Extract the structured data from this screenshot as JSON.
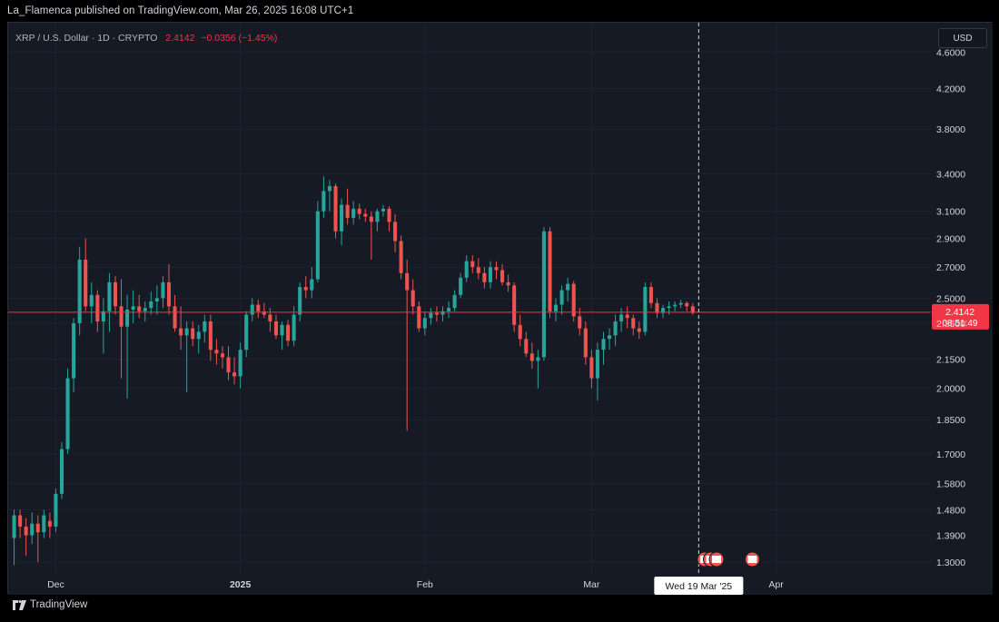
{
  "header": {
    "published_line": "La_Flamenca published on TradingView.com, Mar 26, 2025 16:08 UTC+1"
  },
  "legend": {
    "symbol": "XRP / U.S. Dollar · 1D · CRYPTO",
    "price": "2.4142",
    "change": "−0.0356 (−1.45%)"
  },
  "currency": "USD",
  "price_badge": {
    "price": "2.4142",
    "countdown": "08:51:49"
  },
  "crosshair_label": "Wed 19 Mar '25",
  "footer": {
    "brand": "TradingView"
  },
  "colors": {
    "up": "#26a69a",
    "down": "#ef5350",
    "background": "#161a25",
    "grid": "#1f2330",
    "price_line": "#f23645"
  },
  "chart_data": {
    "type": "candlestick",
    "title": "XRP / U.S. Dollar · 1D · CRYPTO",
    "y_scale": "log",
    "ylim": [
      1.26,
      4.75
    ],
    "y_ticks": [
      {
        "value": 4.6,
        "label": "4.6000"
      },
      {
        "value": 4.2,
        "label": "4.2000"
      },
      {
        "value": 3.8,
        "label": "3.8000"
      },
      {
        "value": 3.4,
        "label": "3.4000"
      },
      {
        "value": 3.1,
        "label": "3.1000"
      },
      {
        "value": 2.9,
        "label": "2.9000"
      },
      {
        "value": 2.7,
        "label": "2.7000"
      },
      {
        "value": 2.5,
        "label": "2.5000"
      },
      {
        "value": 2.35,
        "label": "2.3500"
      },
      {
        "value": 2.15,
        "label": "2.1500"
      },
      {
        "value": 2.0,
        "label": "2.0000"
      },
      {
        "value": 1.85,
        "label": "1.8500"
      },
      {
        "value": 1.7,
        "label": "1.7000"
      },
      {
        "value": 1.58,
        "label": "1.5800"
      },
      {
        "value": 1.48,
        "label": "1.4800"
      },
      {
        "value": 1.39,
        "label": "1.3900"
      },
      {
        "value": 1.3,
        "label": "1.3000"
      }
    ],
    "x_ticks": [
      {
        "date": "2024-12-01",
        "label": "Dec",
        "bold": false
      },
      {
        "date": "2025-01-01",
        "label": "2025",
        "bold": true
      },
      {
        "date": "2025-02-01",
        "label": "Feb",
        "bold": false
      },
      {
        "date": "2025-03-01",
        "label": "Mar",
        "bold": false
      },
      {
        "date": "2025-04-01",
        "label": "Apr",
        "bold": false
      }
    ],
    "x_range": [
      "2024-11-23",
      "2025-04-27"
    ],
    "last_price": 2.4142,
    "crosshair_date": "2025-03-19",
    "columns": [
      "date",
      "open",
      "high",
      "low",
      "close"
    ],
    "ohlc": [
      [
        "2024-11-24",
        1.38,
        1.48,
        1.29,
        1.46
      ],
      [
        "2024-11-25",
        1.46,
        1.48,
        1.38,
        1.42
      ],
      [
        "2024-11-26",
        1.42,
        1.45,
        1.32,
        1.39
      ],
      [
        "2024-11-27",
        1.39,
        1.47,
        1.36,
        1.43
      ],
      [
        "2024-11-28",
        1.43,
        1.46,
        1.3,
        1.4
      ],
      [
        "2024-11-29",
        1.4,
        1.48,
        1.38,
        1.46
      ],
      [
        "2024-11-30",
        1.44,
        1.47,
        1.38,
        1.42
      ],
      [
        "2024-12-01",
        1.42,
        1.56,
        1.4,
        1.54
      ],
      [
        "2024-12-02",
        1.54,
        1.75,
        1.52,
        1.72
      ],
      [
        "2024-12-03",
        1.72,
        2.1,
        1.7,
        2.05
      ],
      [
        "2024-12-04",
        2.05,
        2.38,
        1.98,
        2.35
      ],
      [
        "2024-12-05",
        2.35,
        2.84,
        2.28,
        2.75
      ],
      [
        "2024-12-06",
        2.75,
        2.9,
        2.42,
        2.45
      ],
      [
        "2024-12-07",
        2.45,
        2.6,
        2.35,
        2.52
      ],
      [
        "2024-12-08",
        2.52,
        2.55,
        2.3,
        2.36
      ],
      [
        "2024-12-09",
        2.36,
        2.5,
        2.18,
        2.42
      ],
      [
        "2024-12-10",
        2.42,
        2.66,
        2.3,
        2.6
      ],
      [
        "2024-12-11",
        2.6,
        2.64,
        2.4,
        2.45
      ],
      [
        "2024-12-12",
        2.45,
        2.62,
        2.05,
        2.33
      ],
      [
        "2024-12-13",
        2.33,
        2.52,
        1.95,
        2.43
      ],
      [
        "2024-12-14",
        2.43,
        2.55,
        2.35,
        2.45
      ],
      [
        "2024-12-15",
        2.45,
        2.52,
        2.38,
        2.42
      ],
      [
        "2024-12-16",
        2.42,
        2.48,
        2.36,
        2.44
      ],
      [
        "2024-12-17",
        2.44,
        2.54,
        2.4,
        2.48
      ],
      [
        "2024-12-18",
        2.48,
        2.58,
        2.4,
        2.5
      ],
      [
        "2024-12-19",
        2.5,
        2.64,
        2.44,
        2.6
      ],
      [
        "2024-12-20",
        2.6,
        2.72,
        2.4,
        2.45
      ],
      [
        "2024-12-21",
        2.45,
        2.52,
        2.3,
        2.32
      ],
      [
        "2024-12-22",
        2.32,
        2.45,
        2.2,
        2.28
      ],
      [
        "2024-12-23",
        2.28,
        2.36,
        1.98,
        2.32
      ],
      [
        "2024-12-24",
        2.32,
        2.36,
        2.22,
        2.26
      ],
      [
        "2024-12-25",
        2.26,
        2.34,
        2.18,
        2.3
      ],
      [
        "2024-12-26",
        2.3,
        2.4,
        2.24,
        2.36
      ],
      [
        "2024-12-27",
        2.36,
        2.4,
        2.14,
        2.2
      ],
      [
        "2024-12-28",
        2.2,
        2.26,
        2.12,
        2.18
      ],
      [
        "2024-12-29",
        2.18,
        2.22,
        2.1,
        2.16
      ],
      [
        "2024-12-30",
        2.16,
        2.22,
        2.04,
        2.08
      ],
      [
        "2024-12-31",
        2.08,
        2.16,
        2.02,
        2.06
      ],
      [
        "2025-01-01",
        2.06,
        2.24,
        2.0,
        2.2
      ],
      [
        "2025-01-02",
        2.2,
        2.42,
        2.16,
        2.4
      ],
      [
        "2025-01-03",
        2.4,
        2.5,
        2.36,
        2.46
      ],
      [
        "2025-01-04",
        2.46,
        2.49,
        2.38,
        2.42
      ],
      [
        "2025-01-05",
        2.42,
        2.47,
        2.38,
        2.4
      ],
      [
        "2025-01-06",
        2.4,
        2.44,
        2.3,
        2.36
      ],
      [
        "2025-01-07",
        2.36,
        2.4,
        2.26,
        2.28
      ],
      [
        "2025-01-08",
        2.28,
        2.36,
        2.2,
        2.34
      ],
      [
        "2025-01-09",
        2.34,
        2.37,
        2.22,
        2.25
      ],
      [
        "2025-01-10",
        2.25,
        2.45,
        2.22,
        2.4
      ],
      [
        "2025-01-11",
        2.4,
        2.6,
        2.36,
        2.57
      ],
      [
        "2025-01-12",
        2.57,
        2.64,
        2.5,
        2.55
      ],
      [
        "2025-01-13",
        2.55,
        2.7,
        2.5,
        2.62
      ],
      [
        "2025-01-14",
        2.62,
        3.18,
        2.6,
        3.1
      ],
      [
        "2025-01-15",
        3.1,
        3.38,
        3.05,
        3.26
      ],
      [
        "2025-01-16",
        3.26,
        3.35,
        3.1,
        3.3
      ],
      [
        "2025-01-17",
        3.3,
        3.32,
        2.9,
        2.95
      ],
      [
        "2025-01-18",
        2.95,
        3.2,
        2.85,
        3.15
      ],
      [
        "2025-01-19",
        3.15,
        3.28,
        3.0,
        3.05
      ],
      [
        "2025-01-20",
        3.05,
        3.18,
        3.0,
        3.12
      ],
      [
        "2025-01-21",
        3.12,
        3.16,
        3.04,
        3.08
      ],
      [
        "2025-01-22",
        3.08,
        3.12,
        3.02,
        3.06
      ],
      [
        "2025-01-23",
        3.06,
        3.1,
        2.75,
        3.02
      ],
      [
        "2025-01-24",
        3.02,
        3.12,
        2.95,
        3.1
      ],
      [
        "2025-01-25",
        3.1,
        3.15,
        3.06,
        3.12
      ],
      [
        "2025-01-26",
        3.12,
        3.14,
        2.95,
        3.02
      ],
      [
        "2025-01-27",
        3.02,
        3.08,
        2.8,
        2.88
      ],
      [
        "2025-01-28",
        2.88,
        2.92,
        2.62,
        2.66
      ],
      [
        "2025-01-29",
        2.66,
        2.75,
        1.8,
        2.55
      ],
      [
        "2025-01-30",
        2.55,
        2.62,
        2.4,
        2.45
      ],
      [
        "2025-01-31",
        2.45,
        2.48,
        2.3,
        2.32
      ],
      [
        "2025-02-01",
        2.32,
        2.42,
        2.28,
        2.38
      ],
      [
        "2025-02-02",
        2.38,
        2.44,
        2.34,
        2.41
      ],
      [
        "2025-02-03",
        2.41,
        2.45,
        2.36,
        2.4
      ],
      [
        "2025-02-04",
        2.4,
        2.45,
        2.36,
        2.42
      ],
      [
        "2025-02-05",
        2.42,
        2.48,
        2.38,
        2.44
      ],
      [
        "2025-02-06",
        2.44,
        2.55,
        2.42,
        2.52
      ],
      [
        "2025-02-07",
        2.52,
        2.66,
        2.5,
        2.63
      ],
      [
        "2025-02-08",
        2.63,
        2.78,
        2.6,
        2.74
      ],
      [
        "2025-02-09",
        2.74,
        2.78,
        2.66,
        2.7
      ],
      [
        "2025-02-10",
        2.7,
        2.76,
        2.62,
        2.66
      ],
      [
        "2025-02-11",
        2.66,
        2.7,
        2.56,
        2.6
      ],
      [
        "2025-02-12",
        2.6,
        2.74,
        2.56,
        2.7
      ],
      [
        "2025-02-13",
        2.7,
        2.74,
        2.62,
        2.68
      ],
      [
        "2025-02-14",
        2.68,
        2.72,
        2.58,
        2.6
      ],
      [
        "2025-02-15",
        2.6,
        2.65,
        2.54,
        2.58
      ],
      [
        "2025-02-16",
        2.58,
        2.6,
        2.3,
        2.34
      ],
      [
        "2025-02-17",
        2.34,
        2.4,
        2.22,
        2.26
      ],
      [
        "2025-02-18",
        2.26,
        2.3,
        2.16,
        2.18
      ],
      [
        "2025-02-19",
        2.18,
        2.24,
        2.1,
        2.14
      ],
      [
        "2025-02-20",
        2.14,
        2.2,
        2.0,
        2.16
      ],
      [
        "2025-02-21",
        2.16,
        2.98,
        2.14,
        2.95
      ],
      [
        "2025-02-22",
        2.95,
        2.98,
        2.38,
        2.42
      ],
      [
        "2025-02-23",
        2.42,
        2.5,
        2.36,
        2.46
      ],
      [
        "2025-02-24",
        2.46,
        2.58,
        2.4,
        2.55
      ],
      [
        "2025-02-25",
        2.55,
        2.63,
        2.48,
        2.59
      ],
      [
        "2025-02-26",
        2.59,
        2.61,
        2.36,
        2.39
      ],
      [
        "2025-02-27",
        2.39,
        2.44,
        2.28,
        2.32
      ],
      [
        "2025-02-28",
        2.32,
        2.36,
        2.12,
        2.16
      ],
      [
        "2025-03-01",
        2.16,
        2.2,
        2.0,
        2.05
      ],
      [
        "2025-03-02",
        2.05,
        2.24,
        1.94,
        2.2
      ],
      [
        "2025-03-03",
        2.2,
        2.3,
        2.12,
        2.26
      ],
      [
        "2025-03-04",
        2.26,
        2.32,
        2.2,
        2.28
      ],
      [
        "2025-03-05",
        2.28,
        2.4,
        2.22,
        2.36
      ],
      [
        "2025-03-06",
        2.36,
        2.44,
        2.3,
        2.4
      ],
      [
        "2025-03-07",
        2.4,
        2.45,
        2.32,
        2.38
      ],
      [
        "2025-03-08",
        2.38,
        2.4,
        2.28,
        2.32
      ],
      [
        "2025-03-09",
        2.32,
        2.36,
        2.26,
        2.3
      ],
      [
        "2025-03-10",
        2.3,
        2.6,
        2.28,
        2.57
      ],
      [
        "2025-03-11",
        2.57,
        2.6,
        2.44,
        2.47
      ],
      [
        "2025-03-12",
        2.47,
        2.5,
        2.38,
        2.41
      ],
      [
        "2025-03-13",
        2.41,
        2.46,
        2.38,
        2.44
      ],
      [
        "2025-03-14",
        2.44,
        2.48,
        2.4,
        2.45
      ],
      [
        "2025-03-15",
        2.45,
        2.48,
        2.42,
        2.46
      ],
      [
        "2025-03-16",
        2.46,
        2.49,
        2.44,
        2.47
      ],
      [
        "2025-03-17",
        2.47,
        2.48,
        2.42,
        2.45
      ],
      [
        "2025-03-18",
        2.45,
        2.47,
        2.4,
        2.41
      ]
    ]
  }
}
